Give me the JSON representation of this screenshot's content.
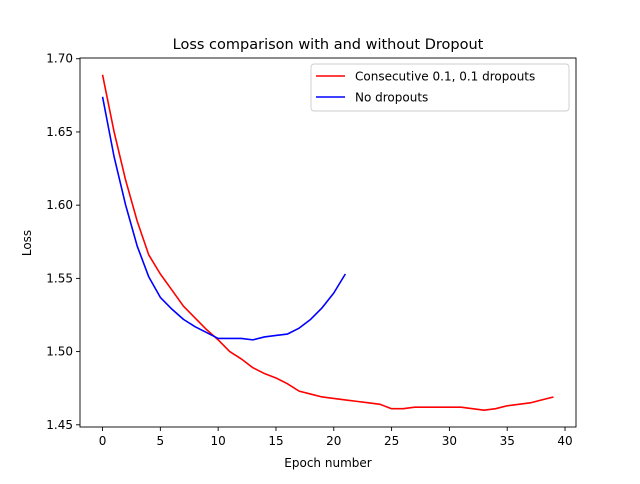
{
  "chart_data": {
    "type": "line",
    "title": "Loss comparison with and without Dropout",
    "xlabel": "Epoch number",
    "ylabel": "Loss",
    "xlim": [
      -1.95,
      40.95
    ],
    "ylim": [
      1.4485,
      1.7005
    ],
    "xticks": [
      0,
      5,
      10,
      15,
      20,
      25,
      30,
      35,
      40
    ],
    "yticks": [
      1.45,
      1.5,
      1.55,
      1.6,
      1.65,
      1.7
    ],
    "xtick_labels": [
      "0",
      "5",
      "10",
      "15",
      "20",
      "25",
      "30",
      "35",
      "40"
    ],
    "ytick_labels": [
      "1.45",
      "1.50",
      "1.55",
      "1.60",
      "1.65",
      "1.70"
    ],
    "grid": false,
    "legend_position": "top-right",
    "series": [
      {
        "name": "Consecutive 0.1, 0.1 dropouts",
        "color": "#ff0000",
        "x": [
          0,
          1,
          2,
          3,
          4,
          5,
          6,
          7,
          8,
          9,
          10,
          11,
          12,
          13,
          14,
          15,
          16,
          17,
          18,
          19,
          20,
          21,
          22,
          23,
          24,
          25,
          26,
          27,
          28,
          29,
          30,
          31,
          32,
          33,
          34,
          35,
          36,
          37,
          38,
          39
        ],
        "y": [
          1.689,
          1.65,
          1.617,
          1.589,
          1.566,
          1.553,
          1.542,
          1.531,
          1.523,
          1.515,
          1.508,
          1.5,
          1.495,
          1.489,
          1.485,
          1.482,
          1.478,
          1.473,
          1.471,
          1.469,
          1.468,
          1.467,
          1.466,
          1.465,
          1.464,
          1.461,
          1.461,
          1.462,
          1.462,
          1.462,
          1.462,
          1.462,
          1.461,
          1.46,
          1.461,
          1.463,
          1.464,
          1.465,
          1.467,
          1.469
        ]
      },
      {
        "name": "No dropouts",
        "color": "#0000ff",
        "x": [
          0,
          1,
          2,
          3,
          4,
          5,
          6,
          7,
          8,
          9,
          10,
          11,
          12,
          13,
          14,
          15,
          16,
          17,
          18,
          19,
          20,
          21
        ],
        "y": [
          1.674,
          1.633,
          1.6,
          1.572,
          1.551,
          1.537,
          1.529,
          1.522,
          1.517,
          1.513,
          1.509,
          1.509,
          1.509,
          1.508,
          1.51,
          1.511,
          1.512,
          1.516,
          1.522,
          1.53,
          1.54,
          1.553
        ]
      }
    ]
  }
}
